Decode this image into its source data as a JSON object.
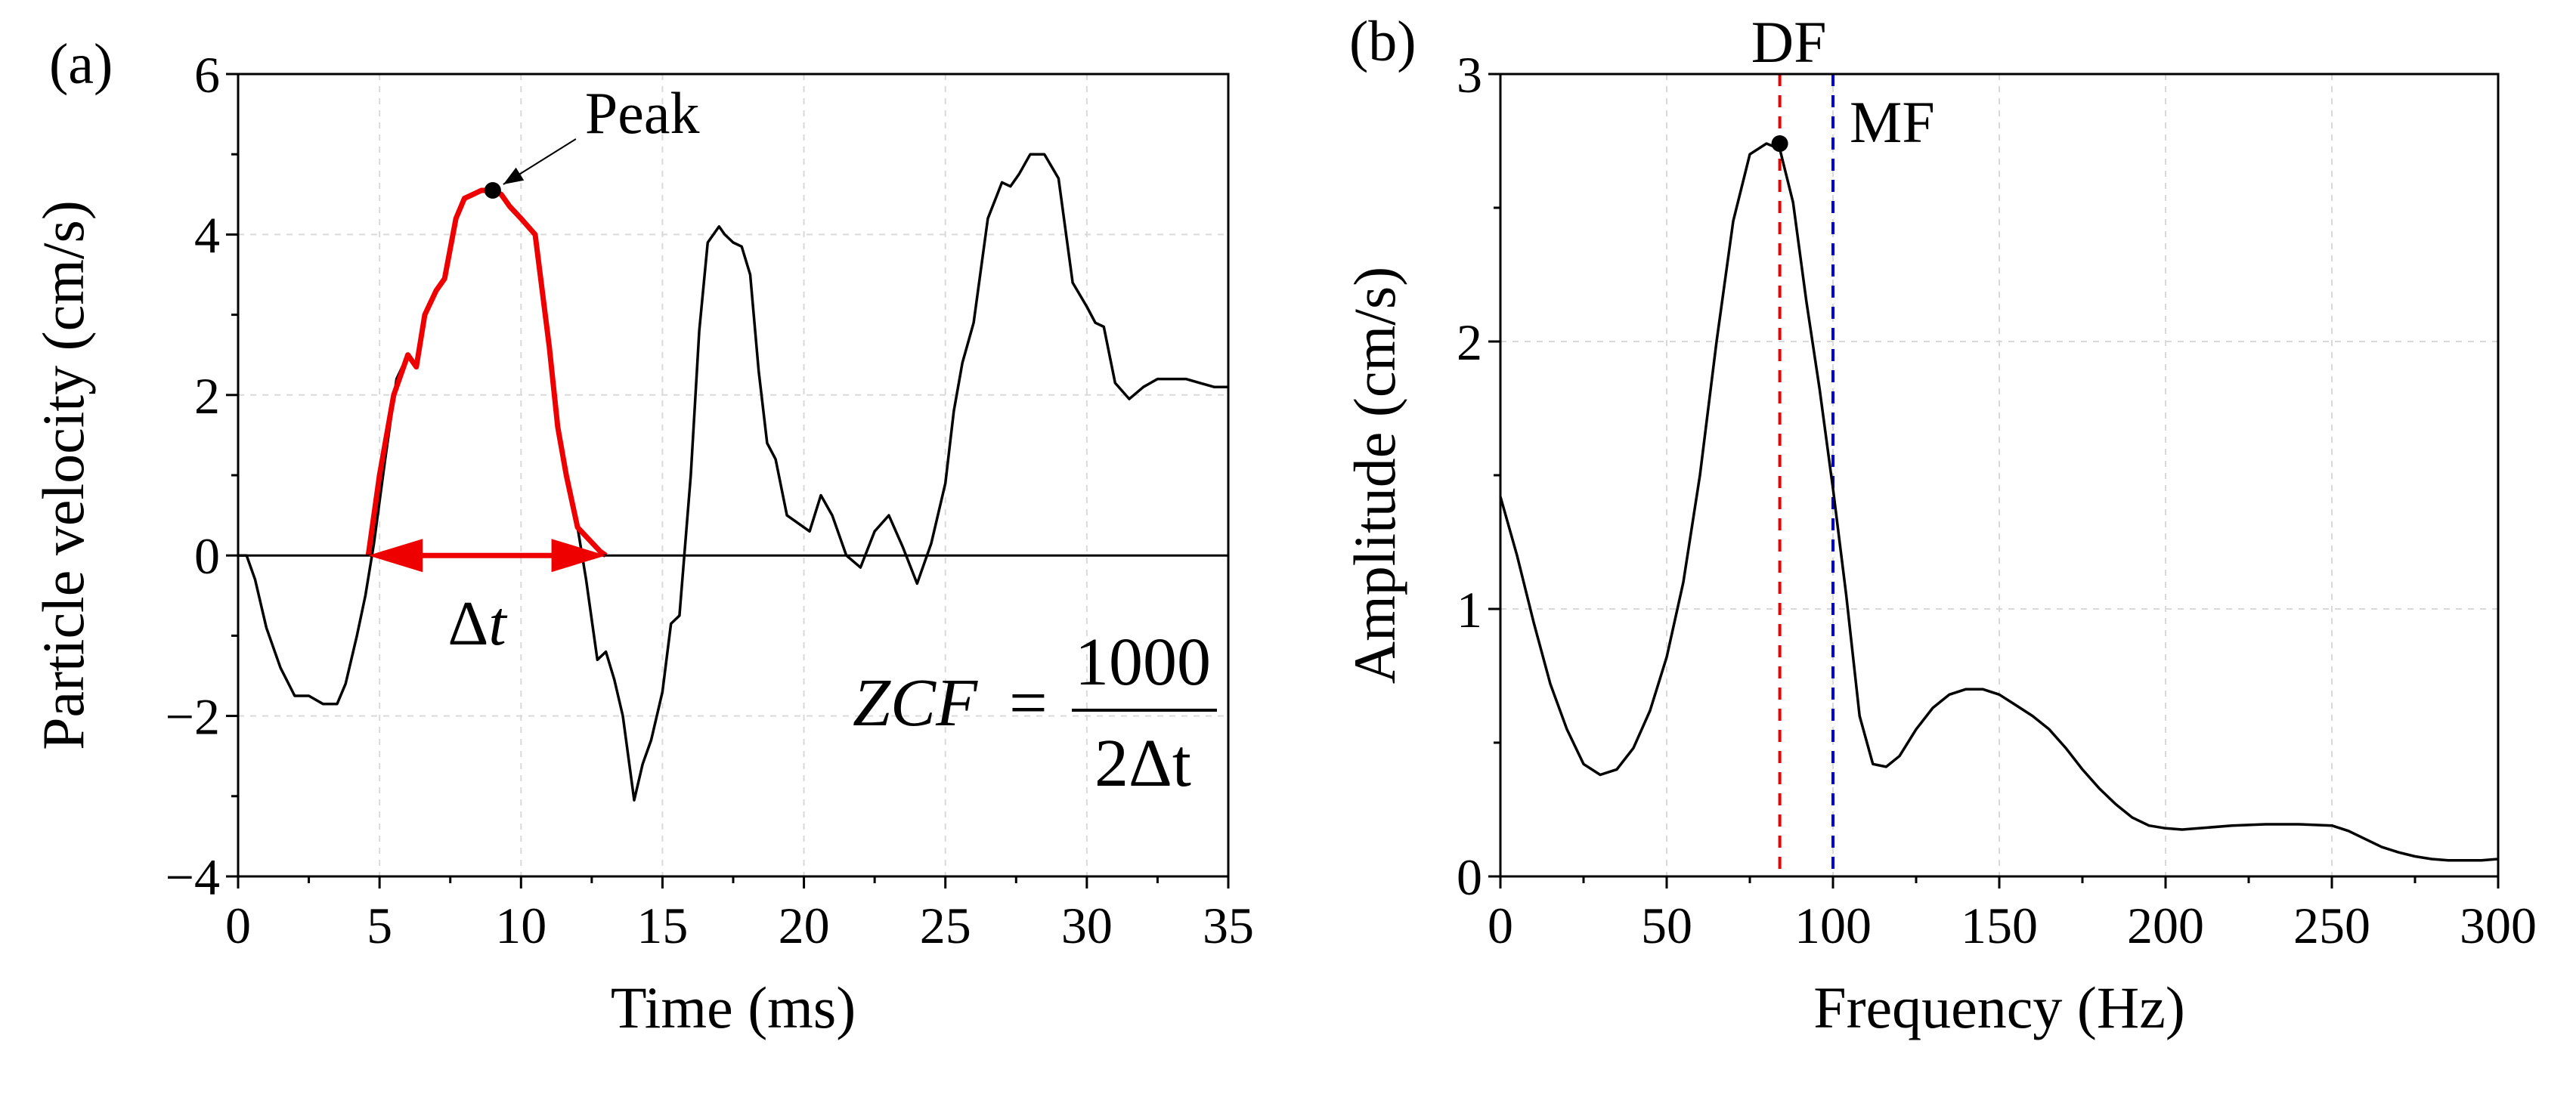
{
  "chart_data": [
    {
      "panel": "(a)",
      "type": "line",
      "title": "",
      "xlabel": "Time (ms)",
      "ylabel": "Particle velocity (cm/s)",
      "xlim": [
        0,
        35
      ],
      "ylim": [
        -4,
        6
      ],
      "xticks": [
        "0",
        "5",
        "10",
        "15",
        "20",
        "25",
        "30",
        "35"
      ],
      "yticks": [
        "−4",
        "−2",
        "0",
        "2",
        "4",
        "6"
      ],
      "grid": true,
      "series": [
        {
          "name": "velocity",
          "color": "#000000",
          "x": [
            0,
            0.3,
            0.6,
            1.0,
            1.5,
            2.0,
            2.5,
            3.0,
            3.5,
            3.8,
            4.2,
            4.5,
            4.8,
            5.2,
            5.6,
            6.0,
            6.3,
            6.6,
            7.0,
            7.3,
            7.7,
            8.0,
            8.3,
            8.6,
            9.0,
            9.3,
            9.6,
            10.0,
            10.5,
            11.0,
            11.3,
            11.6,
            12.0,
            12.3,
            12.7,
            13.0,
            13.3,
            13.6,
            14.0,
            14.3,
            14.6,
            15.0,
            15.3,
            15.6,
            16.0,
            16.3,
            16.6,
            17.0,
            17.2,
            17.5,
            17.8,
            18.1,
            18.4,
            18.7,
            19.0,
            19.4,
            19.8,
            20.2,
            20.6,
            21.0,
            21.5,
            22.0,
            22.5,
            23.0,
            23.5,
            24.0,
            24.5,
            25.0,
            25.3,
            25.6,
            26.0,
            26.5,
            27.0,
            27.3,
            27.6,
            28.0,
            28.5,
            29.0,
            29.5,
            30.0,
            30.3,
            30.6,
            31.0,
            31.5,
            32.0,
            32.5,
            33.0,
            33.5,
            34.0,
            34.5,
            35.0
          ],
          "y": [
            0,
            0,
            -0.3,
            -0.9,
            -1.4,
            -1.75,
            -1.75,
            -1.85,
            -1.85,
            -1.6,
            -1.0,
            -0.5,
            0.15,
            1.2,
            2.2,
            2.5,
            2.35,
            3.0,
            3.3,
            3.45,
            4.2,
            4.45,
            4.5,
            4.55,
            4.55,
            4.5,
            4.35,
            4.2,
            4.0,
            2.6,
            1.6,
            1.0,
            0.35,
            -0.3,
            -1.3,
            -1.2,
            -1.55,
            -2.0,
            -3.05,
            -2.6,
            -2.3,
            -1.7,
            -0.85,
            -0.75,
            1.0,
            2.8,
            3.9,
            4.1,
            4.0,
            3.9,
            3.85,
            3.5,
            2.3,
            1.4,
            1.2,
            0.5,
            0.4,
            0.3,
            0.75,
            0.5,
            0.0,
            -0.15,
            0.3,
            0.5,
            0.1,
            -0.35,
            0.15,
            0.9,
            1.8,
            2.4,
            2.9,
            4.2,
            4.65,
            4.6,
            4.75,
            5.0,
            5.0,
            4.7,
            3.4,
            3.1,
            2.9,
            2.85,
            2.15,
            1.95,
            2.1,
            2.2,
            2.2,
            2.2,
            2.15,
            2.1,
            2.1
          ]
        },
        {
          "name": "half-cycle (highlighted)",
          "color": "#ee0000",
          "x": [
            4.6,
            5.0,
            5.5,
            6.0,
            6.3,
            6.6,
            7.0,
            7.3,
            7.7,
            8.0,
            8.3,
            8.6,
            9.0,
            9.3,
            9.6,
            10.0,
            10.5,
            11.0,
            11.3,
            11.6,
            12.0,
            12.4,
            12.8,
            13.0
          ],
          "y": [
            0,
            1.0,
            2.0,
            2.5,
            2.35,
            3.0,
            3.3,
            3.45,
            4.2,
            4.45,
            4.5,
            4.55,
            4.55,
            4.5,
            4.35,
            4.2,
            4.0,
            2.6,
            1.6,
            1.0,
            0.35,
            0.2,
            0.05,
            0
          ]
        }
      ],
      "annotations": [
        {
          "text": "Peak",
          "x": 9.0,
          "y": 4.55
        },
        {
          "text": "Δt",
          "x_from": 4.6,
          "x_to": 13.0,
          "y": 0
        },
        {
          "text": "ZCF",
          "formula_eq": "=",
          "numerator": "1000",
          "denominator": "2Δt"
        }
      ]
    },
    {
      "panel": "(b)",
      "type": "line",
      "title": "",
      "xlabel": "Frequency (Hz)",
      "ylabel": "Amplitude (cm/s)",
      "xlim": [
        0,
        300
      ],
      "ylim": [
        0,
        3
      ],
      "xticks": [
        "0",
        "50",
        "100",
        "150",
        "200",
        "250",
        "300"
      ],
      "yticks": [
        "0",
        "1",
        "2",
        "3"
      ],
      "grid": true,
      "series": [
        {
          "name": "spectrum",
          "color": "#000000",
          "x": [
            0,
            5,
            10,
            15,
            20,
            25,
            30,
            35,
            40,
            45,
            50,
            55,
            60,
            65,
            70,
            75,
            80,
            84,
            88,
            92,
            96,
            100,
            104,
            108,
            112,
            116,
            120,
            125,
            130,
            135,
            140,
            145,
            150,
            155,
            160,
            165,
            170,
            175,
            180,
            185,
            190,
            195,
            200,
            205,
            210,
            220,
            230,
            240,
            250,
            255,
            260,
            265,
            270,
            275,
            280,
            285,
            290,
            295,
            300
          ],
          "y": [
            1.42,
            1.2,
            0.95,
            0.72,
            0.55,
            0.42,
            0.38,
            0.4,
            0.48,
            0.62,
            0.82,
            1.1,
            1.5,
            2.0,
            2.45,
            2.7,
            2.74,
            2.72,
            2.52,
            2.15,
            1.82,
            1.45,
            1.05,
            0.6,
            0.42,
            0.41,
            0.45,
            0.55,
            0.63,
            0.68,
            0.7,
            0.7,
            0.68,
            0.64,
            0.6,
            0.55,
            0.48,
            0.4,
            0.33,
            0.27,
            0.22,
            0.19,
            0.18,
            0.175,
            0.18,
            0.19,
            0.195,
            0.195,
            0.19,
            0.17,
            0.14,
            0.11,
            0.09,
            0.075,
            0.065,
            0.06,
            0.06,
            0.06,
            0.065
          ]
        }
      ],
      "markers": [
        {
          "label": "DF",
          "x": 84,
          "color": "#ee0000",
          "peak_y": 2.74
        },
        {
          "label": "MF",
          "x": 100,
          "color": "#0000dd"
        }
      ]
    }
  ]
}
